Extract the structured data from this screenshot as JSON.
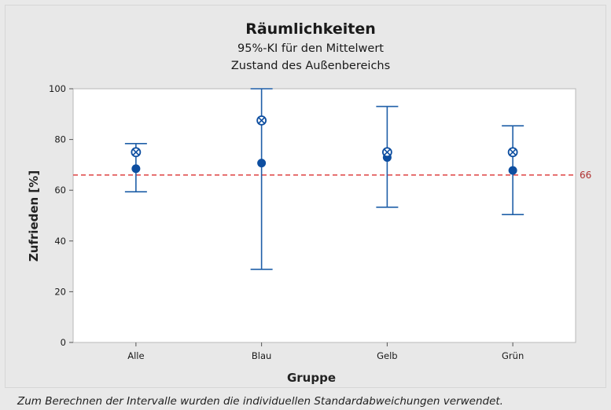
{
  "chart_data": {
    "type": "interval",
    "title": "Räumlichkeiten",
    "subtitle": [
      "95%-KI für den Mittelwert",
      "Zustand des Außenbereichs"
    ],
    "xlabel": "Gruppe",
    "ylabel": "Zufrieden [%]",
    "ylim": [
      0,
      100
    ],
    "yticks": [
      0,
      20,
      40,
      60,
      80,
      100
    ],
    "categories": [
      "Alle",
      "Blau",
      "Gelb",
      "Grün"
    ],
    "mean": [
      68.5,
      70.7,
      72.9,
      67.8
    ],
    "lower": [
      59.4,
      28.8,
      53.3,
      50.4
    ],
    "upper": [
      78.4,
      100,
      93.0,
      85.4
    ],
    "marker_cross": [
      75,
      87.5,
      75,
      75
    ],
    "reference_line": {
      "value": 66,
      "label": "66",
      "color": "#e05050"
    },
    "series_color": "#1f5fa8",
    "grid": false
  },
  "footnote": "Zum Berechnen der Intervalle wurden die individuellen Standardabweichungen verwendet."
}
